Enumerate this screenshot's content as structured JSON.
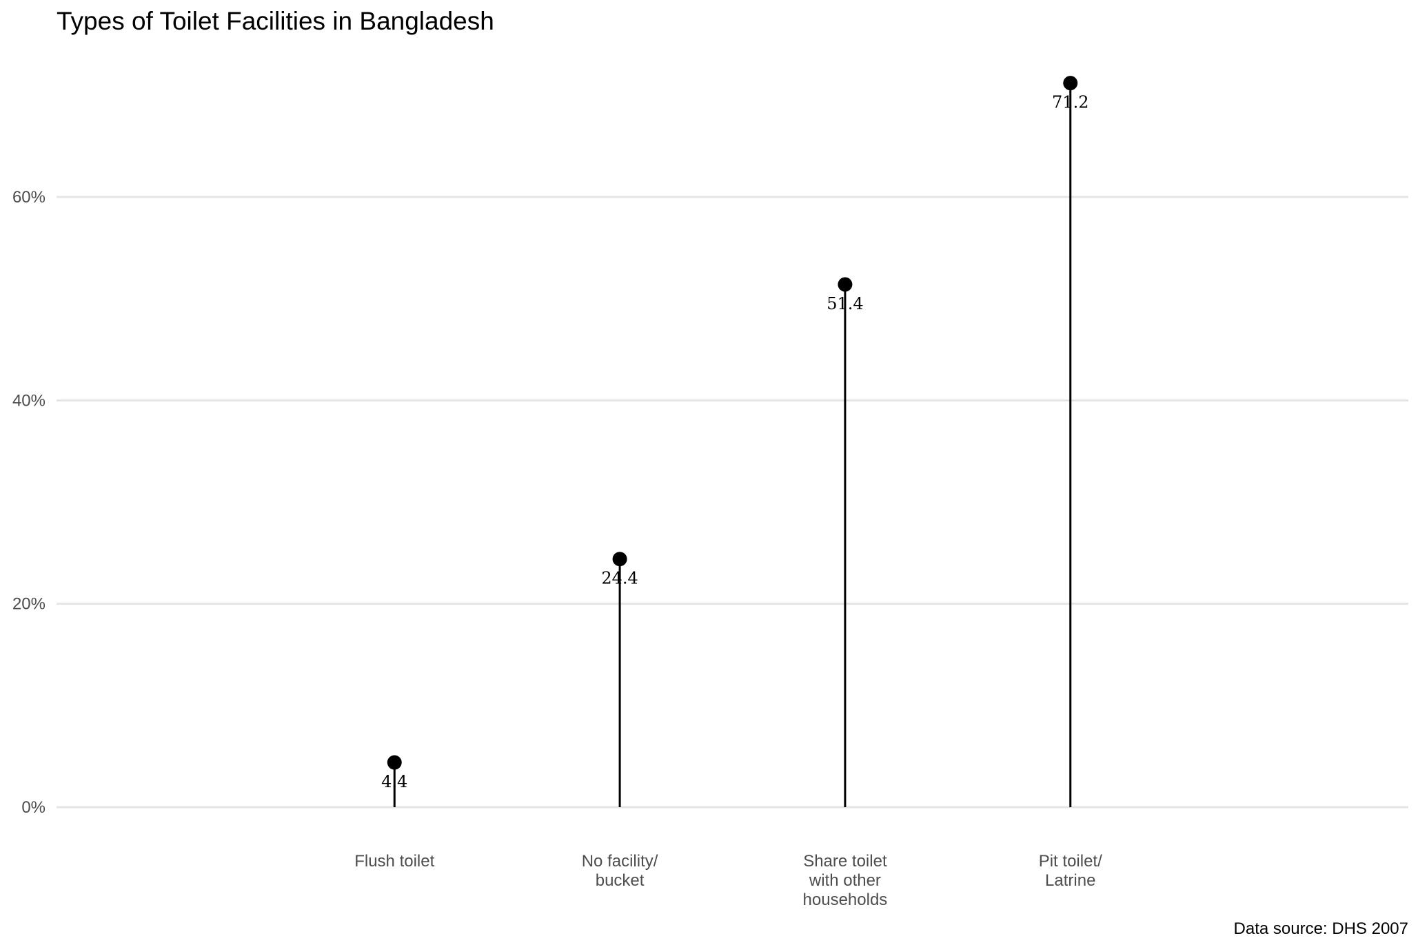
{
  "chart_data": {
    "type": "lollipop",
    "title": "Types of Toilet Facilities in Bangladesh",
    "caption": "Data source: DHS 2007",
    "xlabel": "",
    "ylabel": "",
    "categories": [
      [
        "Flush toilet"
      ],
      [
        "No facility/",
        "bucket"
      ],
      [
        "Share toilet",
        "with other",
        "households"
      ],
      [
        "Pit toilet/",
        "Latrine"
      ]
    ],
    "values": [
      4.4,
      24.4,
      51.4,
      71.2
    ],
    "data_labels": [
      "4.4",
      "24.4",
      "51.4",
      "71.2"
    ],
    "y_ticks": [
      0,
      20,
      40,
      60
    ],
    "y_tick_labels": [
      "0%",
      "20%",
      "40%",
      "60%"
    ],
    "ylim": [
      0,
      75
    ],
    "x_slots": 6,
    "grid": true,
    "legend": "none",
    "colors": {
      "stem": "#000000",
      "point": "#000000",
      "grid": "#e5e5e5",
      "tick_text": "#4d4d4d"
    }
  }
}
